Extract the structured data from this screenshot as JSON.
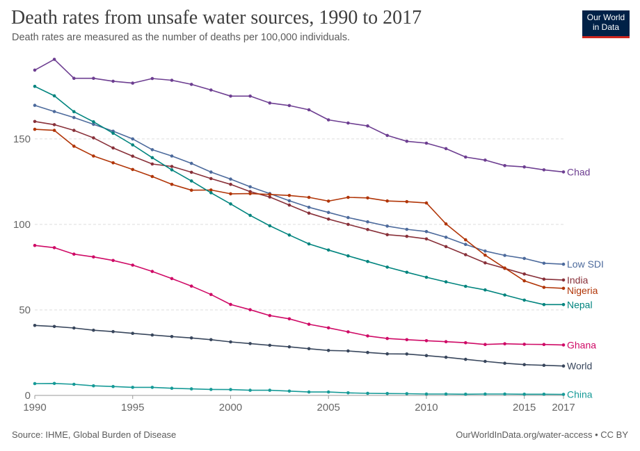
{
  "header": {
    "title": "Death rates from unsafe water sources, 1990 to 2017",
    "subtitle": "Death rates are measured as the number of deaths per 100,000 individuals."
  },
  "logo": {
    "line1": "Our World",
    "line2": "in Data",
    "bg": "#002147",
    "accent": "#ce261e"
  },
  "footer": {
    "source": "Source: IHME, Global Burden of Disease",
    "credit": "OurWorldInData.org/water-access • CC BY"
  },
  "chart_data": {
    "type": "line",
    "title": "Death rates from unsafe water sources, 1990 to 2017",
    "xlabel": "",
    "ylabel": "",
    "x": [
      1990,
      1991,
      1992,
      1993,
      1994,
      1995,
      1996,
      1997,
      1998,
      1999,
      2000,
      2001,
      2002,
      2003,
      2004,
      2005,
      2006,
      2007,
      2008,
      2009,
      2010,
      2011,
      2012,
      2013,
      2014,
      2015,
      2016,
      2017
    ],
    "xlim": [
      1990,
      2017
    ],
    "ylim": [
      0,
      190
    ],
    "x_ticks": [
      "1990",
      "1995",
      "2000",
      "2005",
      "2010",
      "2015",
      "2017"
    ],
    "x_tick_values": [
      1990,
      1995,
      2000,
      2005,
      2010,
      2015,
      2017
    ],
    "y_ticks": [
      "0",
      "50",
      "100",
      "150"
    ],
    "y_tick_values": [
      0,
      50,
      100,
      150
    ],
    "grid": "horizontal dashed",
    "legend": "inline labels at right end of lines",
    "series": [
      {
        "name": "Chad",
        "color": "#6d3e91",
        "values": [
          190.2,
          196.5,
          185.4,
          185.4,
          183.7,
          182.6,
          185.3,
          184.3,
          181.9,
          178.6,
          175.0,
          175.0,
          171.0,
          169.5,
          167.0,
          161.1,
          159.3,
          157.6,
          152.0,
          148.6,
          147.5,
          144.3,
          139.4,
          137.6,
          134.4,
          133.6,
          131.9,
          130.7
        ]
      },
      {
        "name": "Low SDI",
        "color": "#4c6a9c",
        "values": [
          169.6,
          166.0,
          162.5,
          158.5,
          154.5,
          150.0,
          143.7,
          140.0,
          135.7,
          130.6,
          126.5,
          122.0,
          118.0,
          113.8,
          110.0,
          107.0,
          104.0,
          101.5,
          99.0,
          97.1,
          95.8,
          92.5,
          88.3,
          84.4,
          81.9,
          80.1,
          77.3,
          76.7
        ]
      },
      {
        "name": "India",
        "color": "#883039",
        "values": [
          160.2,
          158.3,
          155.0,
          150.6,
          144.7,
          139.9,
          135.3,
          133.9,
          130.5,
          126.8,
          123.4,
          119.2,
          116.0,
          111.3,
          106.6,
          103.1,
          100.0,
          97.0,
          94.0,
          93.0,
          91.5,
          87.0,
          82.3,
          77.5,
          74.3,
          71.0,
          68.0,
          67.5
        ]
      },
      {
        "name": "Nigeria",
        "color": "#b13507",
        "values": [
          155.6,
          155.0,
          145.7,
          140.0,
          136.0,
          132.1,
          128.0,
          123.4,
          120.0,
          120.1,
          117.9,
          118.0,
          117.5,
          116.9,
          115.8,
          113.6,
          115.8,
          115.5,
          113.7,
          113.3,
          112.5,
          100.3,
          91.0,
          82.0,
          74.5,
          67.0,
          63.2,
          62.6
        ]
      },
      {
        "name": "Nepal",
        "color": "#00847e",
        "values": [
          180.7,
          175.2,
          165.9,
          160.0,
          153.3,
          146.5,
          139.0,
          131.9,
          125.4,
          118.5,
          112.0,
          105.3,
          99.2,
          93.8,
          88.6,
          85.0,
          81.6,
          78.3,
          75.0,
          72.0,
          69.1,
          66.4,
          63.8,
          61.7,
          58.7,
          55.7,
          53.1,
          53.1
        ]
      },
      {
        "name": "Ghana",
        "color": "#cf0a66",
        "values": [
          87.7,
          86.4,
          82.6,
          81.0,
          78.9,
          76.2,
          72.5,
          68.3,
          63.9,
          59.0,
          53.2,
          50.1,
          46.7,
          44.8,
          41.6,
          39.5,
          37.2,
          34.8,
          33.3,
          32.6,
          32.0,
          31.4,
          30.8,
          29.8,
          30.2,
          29.9,
          29.8,
          29.5
        ]
      },
      {
        "name": "World",
        "color": "#38465c",
        "values": [
          40.9,
          40.3,
          39.4,
          38.1,
          37.3,
          36.3,
          35.3,
          34.4,
          33.6,
          32.6,
          31.3,
          30.3,
          29.3,
          28.4,
          27.3,
          26.3,
          26.0,
          25.1,
          24.3,
          24.2,
          23.3,
          22.3,
          21.1,
          19.9,
          18.8,
          18.0,
          17.6,
          17.2
        ]
      },
      {
        "name": "China",
        "color": "#169a97",
        "values": [
          6.9,
          7.0,
          6.5,
          5.6,
          5.2,
          4.7,
          4.7,
          4.2,
          3.8,
          3.5,
          3.4,
          3.0,
          3.0,
          2.5,
          2.0,
          2.0,
          1.5,
          1.2,
          1.1,
          1.0,
          0.8,
          0.8,
          0.7,
          0.8,
          0.8,
          0.7,
          0.7,
          0.6
        ]
      }
    ]
  }
}
